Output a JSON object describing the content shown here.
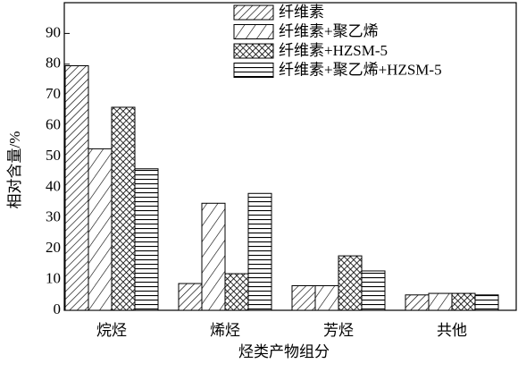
{
  "chart_data": {
    "type": "bar",
    "xlabel": "烃类产物组分",
    "ylabel": "相对含量/%",
    "categories": [
      "烷烃",
      "烯烃",
      "芳烃",
      "共他"
    ],
    "series": [
      {
        "name": "纤维素",
        "color": "#000000",
        "pattern": "diagonal-dense",
        "values": [
          79.5,
          8.7,
          8,
          5
        ]
      },
      {
        "name": "纤维素+聚乙烯",
        "color": "#000000",
        "pattern": "diagonal-sparse",
        "values": [
          52.5,
          34.8,
          8,
          5.5
        ]
      },
      {
        "name": "纤维素+HZSM-5",
        "color": "#000000",
        "pattern": "crosshatch",
        "values": [
          66,
          11.9,
          17.7,
          5.5
        ]
      },
      {
        "name": "纤维素+聚乙烯+HZSM-5",
        "color": "#000000",
        "pattern": "horizontal",
        "values": [
          46,
          38,
          12.8,
          5
        ]
      }
    ],
    "ylim": [
      0,
      100
    ],
    "yticks": [
      0,
      10,
      20,
      30,
      40,
      50,
      60,
      70,
      80,
      90
    ],
    "legend": "top-right"
  }
}
